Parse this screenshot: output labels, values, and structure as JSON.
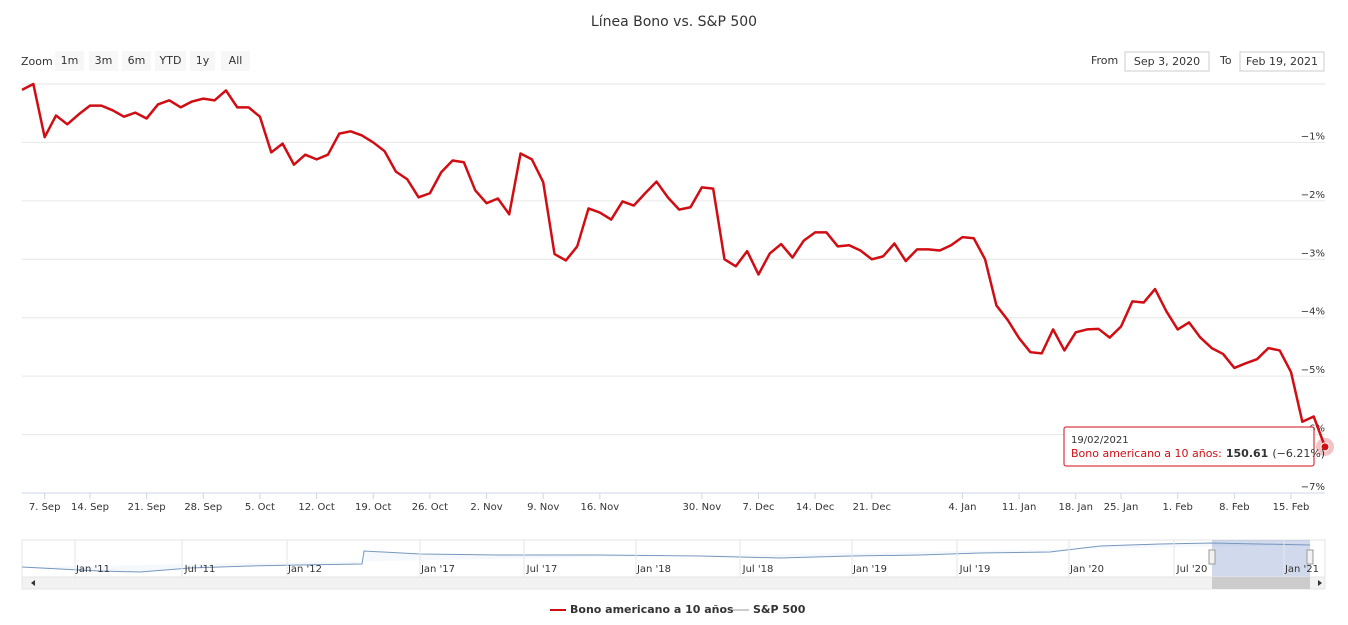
{
  "chart_data": {
    "type": "line",
    "title": "Línea Bono vs. S&P 500",
    "range_selector": {
      "zoom_label": "Zoom",
      "buttons": [
        "1m",
        "3m",
        "6m",
        "YTD",
        "1y",
        "All"
      ],
      "from_label": "From",
      "from": "Sep 3, 2020",
      "to_label": "To",
      "to": "Feb 19, 2021"
    },
    "categories": [
      null,
      null,
      "7. Sep",
      null,
      null,
      null,
      "14. Sep",
      null,
      null,
      null,
      null,
      "21. Sep",
      null,
      null,
      null,
      null,
      "28. Sep",
      null,
      null,
      null,
      null,
      "5. Oct",
      null,
      null,
      null,
      null,
      "12. Oct",
      null,
      null,
      null,
      null,
      "19. Oct",
      null,
      null,
      null,
      null,
      "26. Oct",
      null,
      null,
      null,
      null,
      "2. Nov",
      null,
      null,
      null,
      null,
      "9. Nov",
      null,
      null,
      null,
      null,
      "16. Nov",
      null,
      null,
      null,
      null,
      null,
      null,
      null,
      null,
      "30. Nov",
      null,
      null,
      null,
      null,
      "7. Dec",
      null,
      null,
      null,
      null,
      "14. Dec",
      null,
      null,
      null,
      null,
      "21. Dec",
      null,
      null,
      null,
      null,
      null,
      null,
      null,
      "4. Jan",
      null,
      null,
      null,
      null,
      "11. Jan",
      null,
      null,
      null,
      null,
      "18. Jan",
      null,
      null,
      null,
      "25. Jan",
      null,
      null,
      null,
      null,
      "1. Feb",
      null,
      null,
      null,
      null,
      "8. Feb",
      null,
      null,
      null,
      null,
      "15. Feb",
      null,
      null,
      null
    ],
    "series": [
      {
        "name": "Bono americano a 10 años",
        "color": "#d10d14",
        "values": [
          -0.1,
          0,
          -0.91,
          -0.54,
          -0.69,
          -0.52,
          -0.37,
          -0.37,
          -0.45,
          -0.56,
          -0.49,
          -0.59,
          -0.35,
          -0.28,
          -0.4,
          -0.3,
          -0.25,
          -0.28,
          -0.11,
          -0.4,
          -0.4,
          -0.56,
          -1.17,
          -1.02,
          -1.38,
          -1.21,
          -1.29,
          -1.21,
          -0.85,
          -0.81,
          -0.88,
          -1.0,
          -1.15,
          -1.5,
          -1.63,
          -1.94,
          -1.87,
          -1.51,
          -1.31,
          -1.34,
          -1.82,
          -2.04,
          -1.96,
          -2.23,
          -1.19,
          -1.29,
          -1.68,
          -2.91,
          -3.02,
          -2.78,
          -2.13,
          -2.2,
          -2.32,
          -2.01,
          -2.08,
          -1.87,
          -1.67,
          -1.94,
          -2.15,
          -2.11,
          -1.77,
          -1.79,
          -3.0,
          -3.12,
          -2.86,
          -3.26,
          -2.9,
          -2.74,
          -2.97,
          -2.68,
          -2.54,
          -2.54,
          -2.78,
          -2.76,
          -2.85,
          -3.0,
          -2.95,
          -2.73,
          -3.03,
          -2.83,
          -2.83,
          -2.85,
          -2.76,
          -2.62,
          -2.64,
          -3.0,
          -3.79,
          -4.04,
          -4.35,
          -4.59,
          -4.61,
          -4.2,
          -4.56,
          -4.25,
          -4.2,
          -4.19,
          -4.34,
          -4.15,
          -3.72,
          -3.74,
          -3.51,
          -3.89,
          -4.2,
          -4.08,
          -4.34,
          -4.52,
          -4.62,
          -4.86,
          -4.78,
          -4.71,
          -4.52,
          -4.56,
          -4.93,
          -5.78,
          -5.69,
          -6.21
        ]
      },
      {
        "name": "S&P 500",
        "color": "#cccccc",
        "visible": false
      }
    ],
    "ylim": [
      -7,
      0
    ],
    "yticks": [
      {
        "value": -1,
        "label": "−1%"
      },
      {
        "value": -2,
        "label": "−2%"
      },
      {
        "value": -3,
        "label": "−3%"
      },
      {
        "value": -4,
        "label": "−4%"
      },
      {
        "value": -5,
        "label": "−5%"
      },
      {
        "value": -6,
        "label": "−6%"
      },
      {
        "value": -7,
        "label": "−7%"
      }
    ],
    "grid": true,
    "tooltip": {
      "date": "19/02/2021",
      "series": "Bono americano a 10 años:",
      "value": "150.61",
      "change": "(−6.21%)"
    },
    "navigator": {
      "labels": [
        "Jan '11",
        "Jul '11",
        "Jan '12",
        "Jan '17",
        "Jul '17",
        "Jan '18",
        "Jul '18",
        "Jan '19",
        "Jul '19",
        "Jan '20",
        "Jul '20",
        "Jan '21"
      ]
    }
  }
}
